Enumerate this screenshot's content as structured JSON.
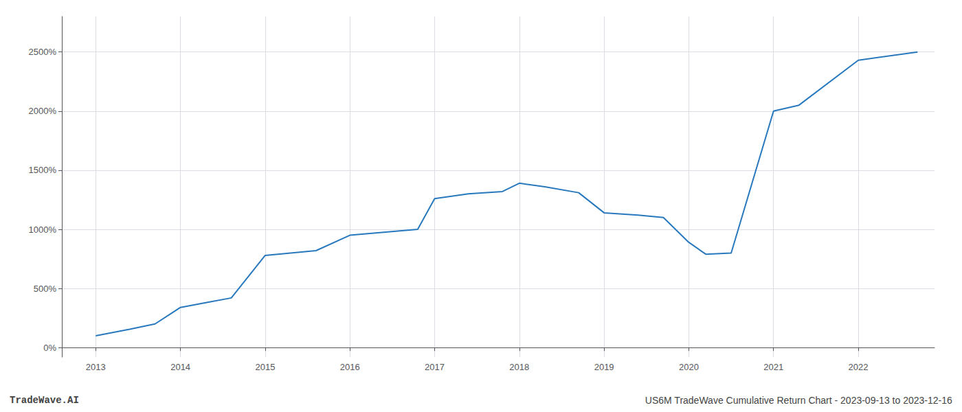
{
  "chart_data": {
    "type": "line",
    "x": [
      2013.0,
      2013.4,
      2013.7,
      2014.0,
      2014.3,
      2014.6,
      2015.0,
      2015.3,
      2015.6,
      2016.0,
      2016.4,
      2016.8,
      2017.0,
      2017.4,
      2017.8,
      2018.0,
      2018.3,
      2018.7,
      2019.0,
      2019.4,
      2019.7,
      2020.0,
      2020.2,
      2020.5,
      2021.0,
      2021.3,
      2022.0,
      2022.7
    ],
    "values": [
      100,
      155,
      200,
      340,
      380,
      420,
      780,
      800,
      820,
      950,
      975,
      1000,
      1260,
      1300,
      1320,
      1390,
      1360,
      1310,
      1140,
      1120,
      1100,
      890,
      790,
      800,
      2000,
      2050,
      2430,
      2500
    ],
    "color": "#2878bd",
    "xlim": [
      2012.6,
      2022.9
    ],
    "xticks": [
      2013,
      2014,
      2015,
      2016,
      2017,
      2018,
      2019,
      2020,
      2021,
      2022
    ],
    "ylim": [
      -80,
      2800
    ],
    "yticks": [
      {
        "value": 0,
        "label": "0%"
      },
      {
        "value": 500,
        "label": "500%"
      },
      {
        "value": 1000,
        "label": "1000%"
      },
      {
        "value": 1500,
        "label": "1500%"
      },
      {
        "value": 2000,
        "label": "2000%"
      },
      {
        "value": 2500,
        "label": "2500%"
      }
    ],
    "grid": true,
    "annotations": [
      "TradeWave.AI",
      "US6M TradeWave Cumulative Return Chart - 2023-09-13 to 2023-12-16"
    ]
  }
}
